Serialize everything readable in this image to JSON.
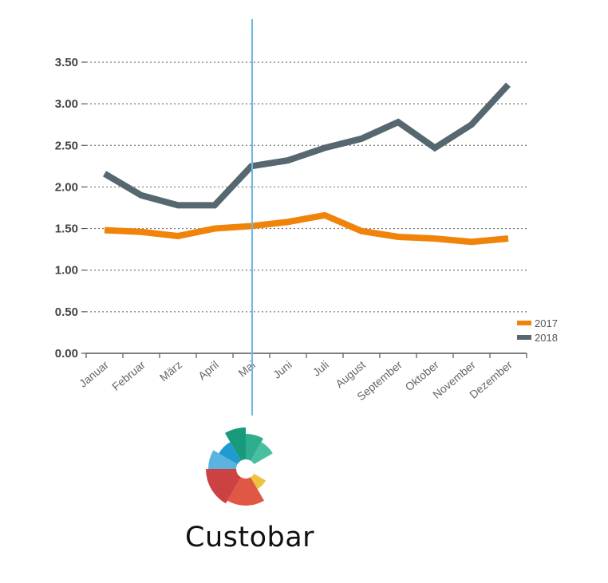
{
  "chart_data": {
    "type": "line",
    "categories": [
      "Januar",
      "Februar",
      "März",
      "April",
      "Mai",
      "Juni",
      "Juli",
      "August",
      "September",
      "Oktober",
      "November",
      "Dezember"
    ],
    "series": [
      {
        "name": "2017",
        "color": "#f0840b",
        "values": [
          1.48,
          1.46,
          1.41,
          1.5,
          1.53,
          1.58,
          1.66,
          1.47,
          1.4,
          1.38,
          1.34,
          1.38
        ]
      },
      {
        "name": "2018",
        "color": "#56676f",
        "values": [
          2.16,
          1.9,
          1.78,
          1.78,
          2.25,
          2.32,
          2.47,
          2.58,
          2.78,
          2.47,
          2.75,
          3.23
        ]
      }
    ],
    "yticks": [
      "0.00",
      "0.50",
      "1.00",
      "1.50",
      "2.00",
      "2.50",
      "3.00",
      "3.50"
    ],
    "ylim": [
      0,
      3.5
    ],
    "title": "",
    "xlabel": "",
    "ylabel": "",
    "grid": "horizontal dotted",
    "legend_position": "bottom-right",
    "highlight_category": "Mai",
    "highlight_color": "#6fb8e3"
  },
  "brand": {
    "name": "Custobar"
  }
}
